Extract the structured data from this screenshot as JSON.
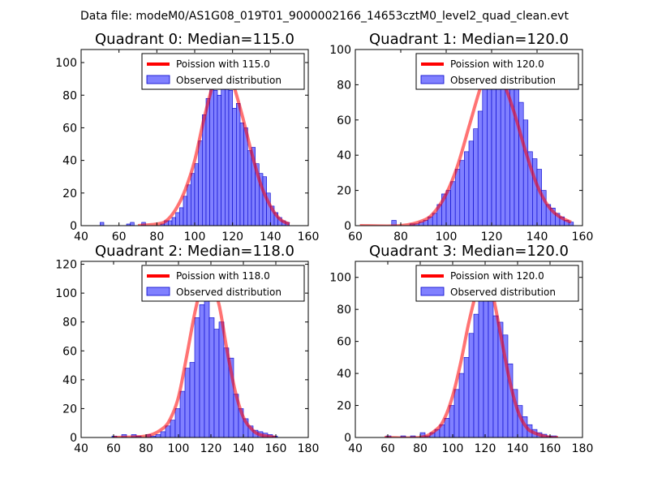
{
  "figure_title": "Data file: modeM0/AS1G08_019T01_9000002166_14653cztM0_level2_quad_clean.evt",
  "colors": {
    "hist_fill": "#8080ff",
    "hist_edge": "#0000cc",
    "poisson_line": "#ff0000"
  },
  "chart_data": [
    {
      "type": "bar",
      "title": "Quadrant 0: Median=115.0",
      "median": 115.0,
      "legend": [
        "Poission with 115.0",
        "Observed distribution"
      ],
      "legend_position": "top-right",
      "xlim": [
        40,
        160
      ],
      "ylim": [
        0,
        108
      ],
      "xticks": [
        40,
        60,
        80,
        100,
        120,
        140,
        160
      ],
      "yticks": [
        0,
        20,
        40,
        60,
        80,
        100
      ],
      "bin_width": 2,
      "hist": [
        [
          50,
          2
        ],
        [
          64,
          1
        ],
        [
          66,
          2
        ],
        [
          72,
          2
        ],
        [
          82,
          1
        ],
        [
          84,
          3
        ],
        [
          86,
          3
        ],
        [
          88,
          5
        ],
        [
          90,
          8
        ],
        [
          92,
          11
        ],
        [
          94,
          18
        ],
        [
          96,
          25
        ],
        [
          98,
          32
        ],
        [
          100,
          38
        ],
        [
          102,
          52
        ],
        [
          104,
          68
        ],
        [
          106,
          78
        ],
        [
          108,
          87
        ],
        [
          110,
          83
        ],
        [
          112,
          80
        ],
        [
          114,
          95
        ],
        [
          116,
          94
        ],
        [
          118,
          83
        ],
        [
          120,
          72
        ],
        [
          122,
          75
        ],
        [
          124,
          63
        ],
        [
          126,
          60
        ],
        [
          128,
          46
        ],
        [
          130,
          48
        ],
        [
          132,
          38
        ],
        [
          134,
          32
        ],
        [
          136,
          30
        ],
        [
          138,
          20
        ],
        [
          140,
          12
        ],
        [
          142,
          8
        ],
        [
          144,
          5
        ],
        [
          146,
          3
        ],
        [
          148,
          2
        ]
      ],
      "poisson_x": [
        70,
        80,
        85,
        90,
        95,
        100,
        105,
        110,
        113,
        115,
        117,
        120,
        125,
        130,
        135,
        140,
        145,
        150
      ],
      "poisson_y": [
        0,
        1,
        3,
        10,
        22,
        40,
        66,
        88,
        96,
        97,
        95,
        88,
        68,
        45,
        25,
        12,
        4,
        1
      ]
    },
    {
      "type": "bar",
      "title": "Quadrant 1: Median=120.0",
      "median": 120.0,
      "legend": [
        "Poission with 120.0",
        "Observed distribution"
      ],
      "legend_position": "top-right",
      "xlim": [
        60,
        160
      ],
      "ylim": [
        0,
        100
      ],
      "xticks": [
        60,
        80,
        100,
        120,
        140,
        160
      ],
      "yticks": [
        0,
        20,
        40,
        60,
        80,
        100
      ],
      "bin_width": 2,
      "hist": [
        [
          76,
          3
        ],
        [
          84,
          1
        ],
        [
          86,
          1
        ],
        [
          88,
          2
        ],
        [
          90,
          3
        ],
        [
          92,
          5
        ],
        [
          94,
          7
        ],
        [
          96,
          12
        ],
        [
          98,
          18
        ],
        [
          100,
          20
        ],
        [
          102,
          25
        ],
        [
          104,
          32
        ],
        [
          106,
          37
        ],
        [
          108,
          42
        ],
        [
          110,
          48
        ],
        [
          112,
          55
        ],
        [
          114,
          65
        ],
        [
          116,
          84
        ],
        [
          118,
          95
        ],
        [
          120,
          90
        ],
        [
          122,
          80
        ],
        [
          124,
          85
        ],
        [
          126,
          80
        ],
        [
          128,
          94
        ],
        [
          130,
          80
        ],
        [
          132,
          70
        ],
        [
          134,
          60
        ],
        [
          136,
          42
        ],
        [
          138,
          38
        ],
        [
          140,
          32
        ],
        [
          142,
          20
        ],
        [
          144,
          12
        ],
        [
          146,
          10
        ],
        [
          148,
          7
        ],
        [
          150,
          5
        ],
        [
          152,
          3
        ],
        [
          154,
          2
        ]
      ],
      "poisson_x": [
        62,
        80,
        90,
        95,
        100,
        105,
        110,
        115,
        118,
        120,
        122,
        125,
        130,
        135,
        140,
        145,
        150,
        155
      ],
      "poisson_y": [
        0,
        0,
        3,
        8,
        18,
        34,
        56,
        78,
        87,
        90,
        88,
        82,
        64,
        42,
        23,
        11,
        5,
        2
      ]
    },
    {
      "type": "bar",
      "title": "Quadrant 2: Median=118.0",
      "median": 118.0,
      "legend": [
        "Poission with 118.0",
        "Observed distribution"
      ],
      "legend_position": "top-right",
      "xlim": [
        40,
        180
      ],
      "ylim": [
        0,
        122
      ],
      "xticks": [
        40,
        60,
        80,
        100,
        120,
        140,
        160,
        180
      ],
      "yticks": [
        0,
        20,
        40,
        60,
        80,
        100,
        120
      ],
      "bin_width": 3,
      "hist": [
        [
          59,
          1
        ],
        [
          65,
          2
        ],
        [
          71,
          2
        ],
        [
          74,
          1
        ],
        [
          80,
          2
        ],
        [
          83,
          1
        ],
        [
          86,
          2
        ],
        [
          89,
          4
        ],
        [
          92,
          8
        ],
        [
          95,
          12
        ],
        [
          98,
          20
        ],
        [
          101,
          32
        ],
        [
          104,
          48
        ],
        [
          107,
          52
        ],
        [
          110,
          83
        ],
        [
          113,
          92
        ],
        [
          116,
          113
        ],
        [
          119,
          83
        ],
        [
          122,
          75
        ],
        [
          125,
          80
        ],
        [
          128,
          62
        ],
        [
          131,
          55
        ],
        [
          134,
          30
        ],
        [
          137,
          20
        ],
        [
          140,
          13
        ],
        [
          143,
          8
        ],
        [
          146,
          5
        ],
        [
          149,
          4
        ],
        [
          152,
          3
        ],
        [
          155,
          2
        ],
        [
          158,
          1
        ]
      ],
      "poisson_x": [
        60,
        80,
        90,
        95,
        100,
        105,
        110,
        114,
        116,
        118,
        120,
        125,
        130,
        135,
        140,
        145,
        150,
        160
      ],
      "poisson_y": [
        0,
        1,
        6,
        13,
        28,
        56,
        86,
        104,
        108,
        109,
        108,
        92,
        60,
        32,
        14,
        6,
        2,
        0
      ]
    },
    {
      "type": "bar",
      "title": "Quadrant 3: Median=120.0",
      "median": 120.0,
      "legend": [
        "Poission with 120.0",
        "Observed distribution"
      ],
      "legend_position": "top-right",
      "xlim": [
        40,
        180
      ],
      "ylim": [
        0,
        110
      ],
      "xticks": [
        40,
        60,
        80,
        100,
        120,
        140,
        160,
        180
      ],
      "yticks": [
        0,
        20,
        40,
        60,
        80,
        100
      ],
      "bin_width": 3,
      "hist": [
        [
          59,
          1
        ],
        [
          68,
          1
        ],
        [
          74,
          1
        ],
        [
          80,
          3
        ],
        [
          83,
          1
        ],
        [
          86,
          3
        ],
        [
          89,
          5
        ],
        [
          92,
          8
        ],
        [
          95,
          12
        ],
        [
          98,
          20
        ],
        [
          101,
          30
        ],
        [
          104,
          40
        ],
        [
          107,
          50
        ],
        [
          110,
          65
        ],
        [
          113,
          77
        ],
        [
          116,
          90
        ],
        [
          119,
          86
        ],
        [
          122,
          92
        ],
        [
          125,
          76
        ],
        [
          128,
          72
        ],
        [
          131,
          64
        ],
        [
          134,
          46
        ],
        [
          137,
          30
        ],
        [
          140,
          20
        ],
        [
          143,
          13
        ],
        [
          146,
          8
        ],
        [
          149,
          5
        ],
        [
          152,
          3
        ],
        [
          155,
          2
        ],
        [
          158,
          1
        ],
        [
          161,
          1
        ]
      ],
      "poisson_x": [
        58,
        80,
        90,
        95,
        100,
        105,
        110,
        115,
        118,
        120,
        122,
        125,
        130,
        135,
        140,
        145,
        150,
        160,
        165
      ],
      "poisson_y": [
        0,
        0,
        5,
        12,
        26,
        47,
        72,
        92,
        98,
        99,
        97,
        88,
        62,
        36,
        17,
        7,
        3,
        0,
        0
      ]
    }
  ]
}
